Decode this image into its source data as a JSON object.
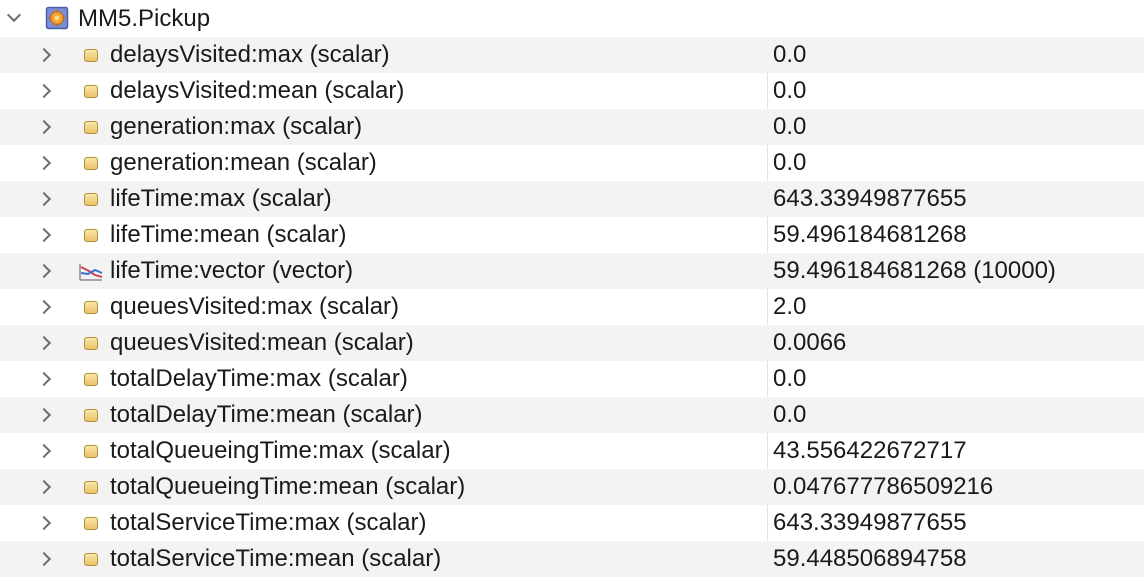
{
  "tree": {
    "root": {
      "label": "MM5.Pickup",
      "icon": "module-icon"
    },
    "rows": [
      {
        "name": "delaysVisited:max (scalar)",
        "value": "0.0",
        "type": "scalar"
      },
      {
        "name": "delaysVisited:mean (scalar)",
        "value": "0.0",
        "type": "scalar"
      },
      {
        "name": "generation:max (scalar)",
        "value": "0.0",
        "type": "scalar"
      },
      {
        "name": "generation:mean (scalar)",
        "value": "0.0",
        "type": "scalar"
      },
      {
        "name": "lifeTime:max (scalar)",
        "value": "643.33949877655",
        "type": "scalar"
      },
      {
        "name": "lifeTime:mean (scalar)",
        "value": "59.496184681268",
        "type": "scalar"
      },
      {
        "name": "lifeTime:vector (vector)",
        "value": "59.496184681268 (10000)",
        "type": "vector"
      },
      {
        "name": "queuesVisited:max (scalar)",
        "value": "2.0",
        "type": "scalar"
      },
      {
        "name": "queuesVisited:mean (scalar)",
        "value": "0.0066",
        "type": "scalar"
      },
      {
        "name": "totalDelayTime:max (scalar)",
        "value": "0.0",
        "type": "scalar"
      },
      {
        "name": "totalDelayTime:mean (scalar)",
        "value": "0.0",
        "type": "scalar"
      },
      {
        "name": "totalQueueingTime:max (scalar)",
        "value": "43.556422672717",
        "type": "scalar"
      },
      {
        "name": "totalQueueingTime:mean (scalar)",
        "value": "0.047677786509216",
        "type": "scalar"
      },
      {
        "name": "totalServiceTime:max (scalar)",
        "value": "643.33949877655",
        "type": "scalar"
      },
      {
        "name": "totalServiceTime:mean (scalar)",
        "value": "59.448506894758",
        "type": "scalar"
      }
    ]
  },
  "colors": {
    "alt_row": "#f3f3f3",
    "divider": "#e2e2e2",
    "scalar_icon": "#e9c36a",
    "chevron": "#6e6e6e"
  }
}
